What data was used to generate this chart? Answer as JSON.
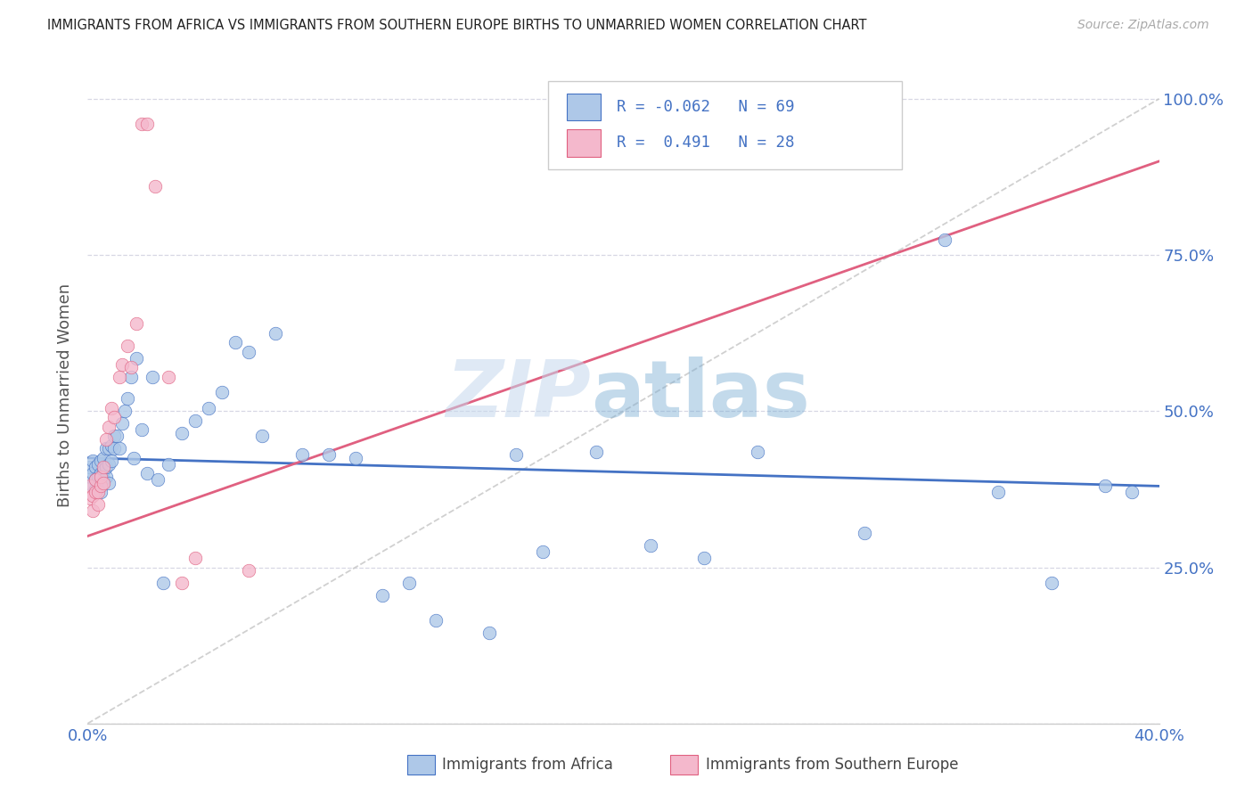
{
  "title": "IMMIGRANTS FROM AFRICA VS IMMIGRANTS FROM SOUTHERN EUROPE BIRTHS TO UNMARRIED WOMEN CORRELATION CHART",
  "source": "Source: ZipAtlas.com",
  "ylabel": "Births to Unmarried Women",
  "xlim": [
    0.0,
    0.4
  ],
  "ylim": [
    0.0,
    1.05
  ],
  "color_blue": "#aec8e8",
  "color_pink": "#f4b8cc",
  "color_blue_line": "#4472c4",
  "color_pink_line": "#e06080",
  "color_diag_line": "#c8c8c8",
  "watermark_zip": "ZIP",
  "watermark_atlas": "atlas",
  "blue_scatter_x": [
    0.001,
    0.001,
    0.002,
    0.002,
    0.002,
    0.003,
    0.003,
    0.003,
    0.004,
    0.004,
    0.004,
    0.005,
    0.005,
    0.005,
    0.005,
    0.006,
    0.006,
    0.006,
    0.007,
    0.007,
    0.007,
    0.008,
    0.008,
    0.008,
    0.009,
    0.009,
    0.01,
    0.01,
    0.011,
    0.012,
    0.013,
    0.014,
    0.015,
    0.016,
    0.017,
    0.018,
    0.02,
    0.022,
    0.024,
    0.026,
    0.028,
    0.03,
    0.035,
    0.04,
    0.045,
    0.05,
    0.055,
    0.06,
    0.065,
    0.07,
    0.08,
    0.09,
    0.1,
    0.11,
    0.12,
    0.13,
    0.15,
    0.16,
    0.17,
    0.19,
    0.21,
    0.23,
    0.25,
    0.29,
    0.32,
    0.34,
    0.36,
    0.38,
    0.39
  ],
  "blue_scatter_y": [
    0.395,
    0.41,
    0.38,
    0.4,
    0.42,
    0.375,
    0.39,
    0.41,
    0.38,
    0.395,
    0.415,
    0.37,
    0.385,
    0.4,
    0.42,
    0.39,
    0.405,
    0.425,
    0.395,
    0.41,
    0.44,
    0.385,
    0.415,
    0.44,
    0.42,
    0.445,
    0.44,
    0.46,
    0.46,
    0.44,
    0.48,
    0.5,
    0.52,
    0.555,
    0.425,
    0.585,
    0.47,
    0.4,
    0.555,
    0.39,
    0.225,
    0.415,
    0.465,
    0.485,
    0.505,
    0.53,
    0.61,
    0.595,
    0.46,
    0.625,
    0.43,
    0.43,
    0.425,
    0.205,
    0.225,
    0.165,
    0.145,
    0.43,
    0.275,
    0.435,
    0.285,
    0.265,
    0.435,
    0.305,
    0.775,
    0.37,
    0.225,
    0.38,
    0.37
  ],
  "pink_scatter_x": [
    0.001,
    0.001,
    0.002,
    0.002,
    0.003,
    0.003,
    0.004,
    0.004,
    0.005,
    0.005,
    0.006,
    0.006,
    0.007,
    0.008,
    0.009,
    0.01,
    0.012,
    0.013,
    0.015,
    0.016,
    0.018,
    0.02,
    0.022,
    0.025,
    0.03,
    0.035,
    0.04,
    0.06
  ],
  "pink_scatter_y": [
    0.36,
    0.38,
    0.34,
    0.365,
    0.37,
    0.39,
    0.35,
    0.37,
    0.38,
    0.395,
    0.385,
    0.41,
    0.455,
    0.475,
    0.505,
    0.49,
    0.555,
    0.575,
    0.605,
    0.57,
    0.64,
    0.96,
    0.96,
    0.86,
    0.555,
    0.225,
    0.265,
    0.245
  ],
  "blue_line_x": [
    0.0,
    0.4
  ],
  "blue_line_y": [
    0.425,
    0.38
  ],
  "pink_line_x": [
    0.0,
    0.4
  ],
  "pink_line_y": [
    0.3,
    0.9
  ],
  "diag_line_x": [
    0.0,
    0.4
  ],
  "diag_line_y": [
    0.0,
    1.0
  ]
}
